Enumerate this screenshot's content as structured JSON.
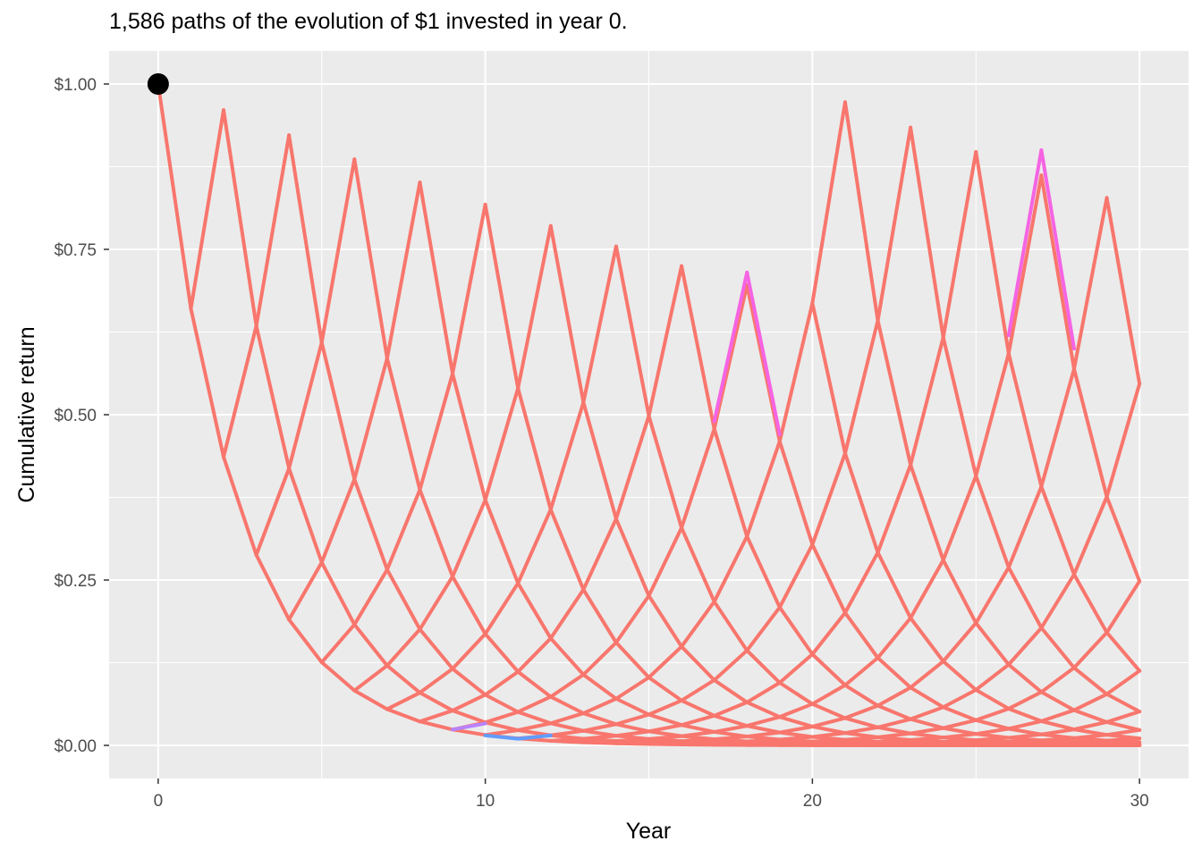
{
  "chart_data": {
    "type": "line",
    "title": "1,586 paths of the evolution of $1 invested in year 0.",
    "xlabel": "Year",
    "ylabel": "Cumulative return",
    "xlim": [
      -1.5,
      31.5
    ],
    "ylim": [
      -0.05,
      1.05
    ],
    "x_ticks": [
      0,
      10,
      20,
      30
    ],
    "x_tick_labels": [
      "0",
      "10",
      "20",
      "30"
    ],
    "y_ticks": [
      0,
      0.25,
      0.5,
      0.75,
      1.0
    ],
    "y_tick_labels": [
      "$0.00",
      "$0.25",
      "$0.50",
      "$0.75",
      "$1.00"
    ],
    "grid": true,
    "legend": "none",
    "start_point": {
      "x": 0,
      "y": 1.0
    },
    "lattice": {
      "up_factor": 1.4545,
      "down_factor": 0.6604,
      "years": 30
    },
    "path_color": "#F8766D",
    "accent_colors": [
      "#F564E3",
      "#619CFF",
      "#B983FF"
    ],
    "background_color": "#EBEBEB",
    "grid_color": "#FFFFFF"
  }
}
